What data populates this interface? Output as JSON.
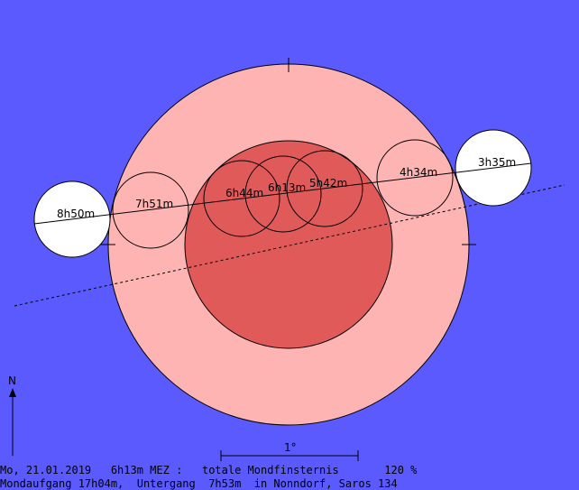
{
  "colors": {
    "background": "#5a5aff",
    "penumbra": "#ffb4b4",
    "umbra": "#e05a5a",
    "moon_outside": "#ffffff"
  },
  "north_label": "N",
  "scale_label": "1°",
  "moon_positions": [
    {
      "time": "8h50m",
      "phase": "outside"
    },
    {
      "time": "7h51m",
      "phase": "penumbra"
    },
    {
      "time": "6h44m",
      "phase": "umbra"
    },
    {
      "time": "6h13m",
      "phase": "umbra"
    },
    {
      "time": "5h42m",
      "phase": "umbra"
    },
    {
      "time": "4h34m",
      "phase": "penumbra"
    },
    {
      "time": "3h35m",
      "phase": "outside"
    }
  ],
  "info": {
    "line1": "Mo, 21.01.2019   6h13m MEZ :   totale Mondfinsternis       120 %",
    "line2": "Mondaufgang 17h04m,  Untergang  7h53m  in Nonndorf, Saros 134"
  }
}
